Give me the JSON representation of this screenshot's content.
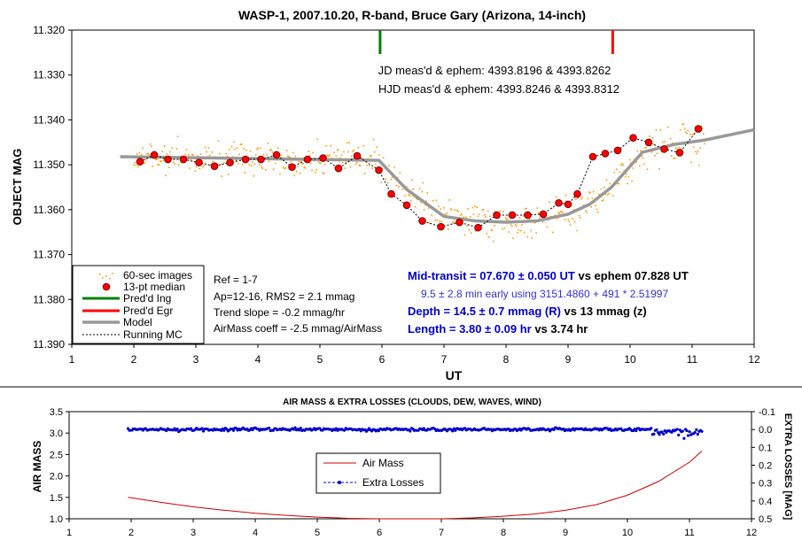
{
  "chart_data": [
    {
      "type": "scatter",
      "title": "WASP-1, 2007.10.20, R-band, Bruce Gary (Arizona, 14-inch)",
      "xlabel": "UT",
      "ylabel": "OBJECT MAG",
      "xlim": [
        1,
        12
      ],
      "ylim": [
        11.39,
        11.32
      ],
      "y_inverted": true,
      "xticks": [
        "1",
        "2",
        "3",
        "4",
        "5",
        "6",
        "7",
        "8",
        "9",
        "10",
        "11",
        "12"
      ],
      "yticks": [
        "11.320",
        "11.330",
        "11.340",
        "11.350",
        "11.360",
        "11.370",
        "11.380",
        "11.390"
      ],
      "grid": false,
      "legend_position": "bottom-left",
      "markers": [
        {
          "name": "Pred'd Ing",
          "x": 5.97,
          "color": "#008000"
        },
        {
          "name": "Pred'd Egr",
          "x": 9.72,
          "color": "#ff0000"
        }
      ],
      "series": [
        {
          "name": "60-sec images",
          "kind": "scatter",
          "color": "#ff9900",
          "x_range": [
            2.0,
            11.2
          ],
          "count": 520
        },
        {
          "name": "13-pt median",
          "kind": "scatter",
          "color": "#ff0000",
          "x": [
            2.1,
            2.33,
            2.55,
            2.8,
            3.05,
            3.3,
            3.55,
            3.8,
            4.05,
            4.3,
            4.55,
            4.8,
            5.05,
            5.3,
            5.6,
            5.95,
            6.15,
            6.4,
            6.65,
            6.95,
            7.25,
            7.55,
            7.85,
            8.1,
            8.35,
            8.6,
            8.85,
            9.0,
            9.15,
            9.4,
            9.6,
            9.8,
            10.05,
            10.3,
            10.55,
            10.8,
            11.1
          ],
          "y": [
            11.3493,
            11.3478,
            11.3488,
            11.3488,
            11.3495,
            11.3503,
            11.3495,
            11.3488,
            11.3488,
            11.3478,
            11.3505,
            11.3488,
            11.3485,
            11.3508,
            11.348,
            11.3512,
            11.3565,
            11.359,
            11.3625,
            11.3638,
            11.3628,
            11.364,
            11.3612,
            11.3612,
            11.3612,
            11.361,
            11.3585,
            11.3588,
            11.3565,
            11.3482,
            11.3475,
            11.3468,
            11.344,
            11.345,
            11.3465,
            11.3473,
            11.342
          ]
        },
        {
          "name": "Model",
          "kind": "line",
          "color": "#999999",
          "x": [
            1.78,
            5.95,
            6.4,
            7.0,
            7.5,
            8.0,
            8.5,
            9.0,
            9.35,
            9.7,
            10.2,
            10.7,
            11.2,
            12.0
          ],
          "y": [
            11.3482,
            11.349,
            11.3555,
            11.3615,
            11.3625,
            11.3628,
            11.3625,
            11.361,
            11.3588,
            11.355,
            11.3472,
            11.3455,
            11.3445,
            11.3422
          ]
        },
        {
          "name": "Running MC",
          "kind": "line",
          "dash": true,
          "color": "#000000"
        }
      ],
      "annotations": [
        {
          "text": "JD meas'd & ephem: 4393.8196 & 4393.8262",
          "color": "#000000"
        },
        {
          "text": "HJD meas'd & ephem: 4393.8246 & 4393.8312",
          "color": "#000000"
        },
        {
          "text": "Ref = 1-7",
          "color": "#000000"
        },
        {
          "text": "Ap=12-16, RMS2 = 2.1 mmag",
          "color": "#000000"
        },
        {
          "text": "Trend slope = -0.2 mmag/hr",
          "color": "#000000"
        },
        {
          "text": "AirMass coeff = -2.5 mmag/AirMass",
          "color": "#000000"
        },
        {
          "text": "Mid-transit = 07.670 ± 0.050 UT",
          "suffix": " vs ephem 07.828 UT",
          "color": "#0000cc"
        },
        {
          "text": "9.5 ± 2.8 min early using 3151.4860 + 491 * 2.51997",
          "color": "#3333cc"
        },
        {
          "text": "Depth = 14.5 ± 0.7 mmag (R)",
          "suffix": " vs 13 mmag (z)",
          "color": "#0000cc"
        },
        {
          "text": "Length = 3.80 ± 0.09 hr",
          "suffix": " vs 3.74 hr",
          "color": "#0000cc"
        }
      ]
    },
    {
      "type": "line",
      "title": "AIR MASS & EXTRA LOSSES (CLOUDS, DEW, WAVES, WIND)",
      "xlabel": "",
      "ylabel": "AIR MASS",
      "y2label": "EXTRA LOSSES [MAG]",
      "xlim": [
        1,
        12
      ],
      "ylim": [
        1.0,
        3.5
      ],
      "y2lim": [
        0.5,
        -0.1
      ],
      "xticks": [
        "1",
        "2",
        "3",
        "4",
        "5",
        "6",
        "7",
        "8",
        "9",
        "10",
        "11",
        "12"
      ],
      "yticks": [
        "1.0",
        "1.5",
        "2.0",
        "2.5",
        "3.0",
        "3.5"
      ],
      "y2ticks": [
        "-0.1",
        "0.0",
        "0.1",
        "0.2",
        "0.3",
        "0.4",
        "0.5"
      ],
      "legend_position": "center",
      "series": [
        {
          "name": "Air Mass",
          "color": "#cc0000",
          "x": [
            1.95,
            2.5,
            3.0,
            3.5,
            4.0,
            4.5,
            5.0,
            5.5,
            6.0,
            6.5,
            7.0,
            7.5,
            8.0,
            8.5,
            9.0,
            9.5,
            10.0,
            10.5,
            11.0,
            11.2
          ],
          "y": [
            1.5,
            1.38,
            1.28,
            1.2,
            1.13,
            1.08,
            1.04,
            1.01,
            0.99,
            0.99,
            1.0,
            1.02,
            1.06,
            1.11,
            1.2,
            1.33,
            1.55,
            1.87,
            2.32,
            2.58
          ]
        },
        {
          "name": "Extra Losses",
          "color": "#0000cc",
          "dash": true,
          "x_range": [
            1.95,
            11.2
          ],
          "y_approx": 0.0
        }
      ]
    }
  ],
  "legend_items": [
    "60-sec images",
    "13-pt median",
    "Pred'd Ing",
    "Pred'd Egr",
    "Model",
    "Running MC"
  ]
}
